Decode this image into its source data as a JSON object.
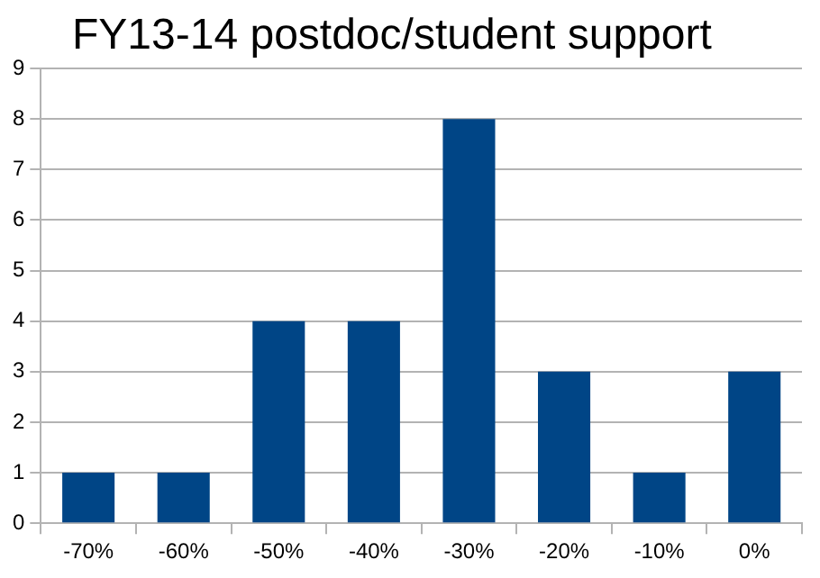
{
  "chart_data": {
    "type": "bar",
    "title": "FY13-14 postdoc/student support",
    "categories": [
      "-70%",
      "-60%",
      "-50%",
      "-40%",
      "-30%",
      "-20%",
      "-10%",
      "0%"
    ],
    "values": [
      1,
      1,
      4,
      4,
      8,
      3,
      1,
      3
    ],
    "color": "#004586",
    "ylim": [
      0,
      9
    ],
    "yticks": [
      0,
      1,
      2,
      3,
      4,
      5,
      6,
      7,
      8,
      9
    ],
    "grid": "y",
    "legend": false
  }
}
